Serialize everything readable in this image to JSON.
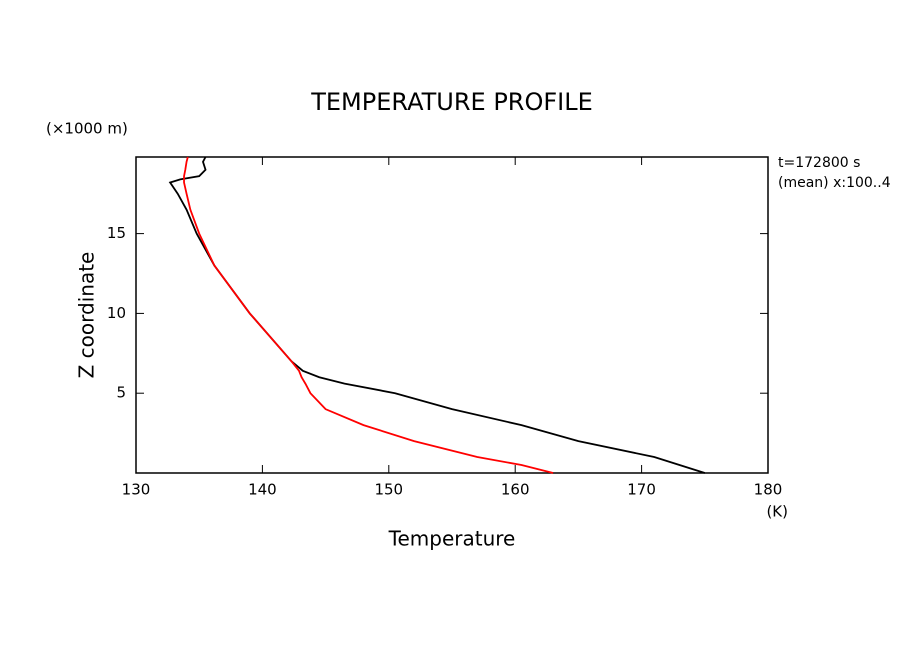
{
  "chart_data": {
    "type": "line",
    "title": "TEMPERATURE PROFILE",
    "x_label": "Temperature",
    "x_unit": "(K)",
    "y_label": "Z coordinate",
    "y_unit": "(×1000 m)",
    "annotations": [
      "t=172800 s",
      "(mean) x:100..4"
    ],
    "y": [
      0,
      0.5,
      1,
      2,
      3,
      4,
      5,
      5.6,
      6,
      6.4,
      7,
      10,
      13,
      15,
      16.5,
      17.5,
      18.2,
      18.4,
      18.6,
      19,
      19.5,
      19.8
    ],
    "series": [
      {
        "color": "#000000",
        "values": [
          175,
          173,
          171,
          165,
          160.5,
          155,
          150.5,
          146.5,
          144.5,
          143.2,
          142.3,
          139,
          136.2,
          134.8,
          134,
          133.3,
          132.7,
          133.5,
          135,
          135.5,
          135.3,
          135.5
        ]
      },
      {
        "color": "#ff0000",
        "values": [
          163,
          160.5,
          157,
          152,
          148,
          145,
          143.8,
          143.4,
          143.1,
          142.9,
          142.3,
          139,
          136.2,
          135,
          134.3,
          134,
          133.8,
          133.8,
          133.8,
          133.9,
          134,
          134.1
        ]
      }
    ],
    "xlim": [
      130,
      180
    ],
    "xticks": [
      130,
      140,
      150,
      160,
      170,
      180
    ],
    "ylim": [
      0,
      19.8
    ],
    "yticks": [
      5,
      10,
      15
    ]
  }
}
